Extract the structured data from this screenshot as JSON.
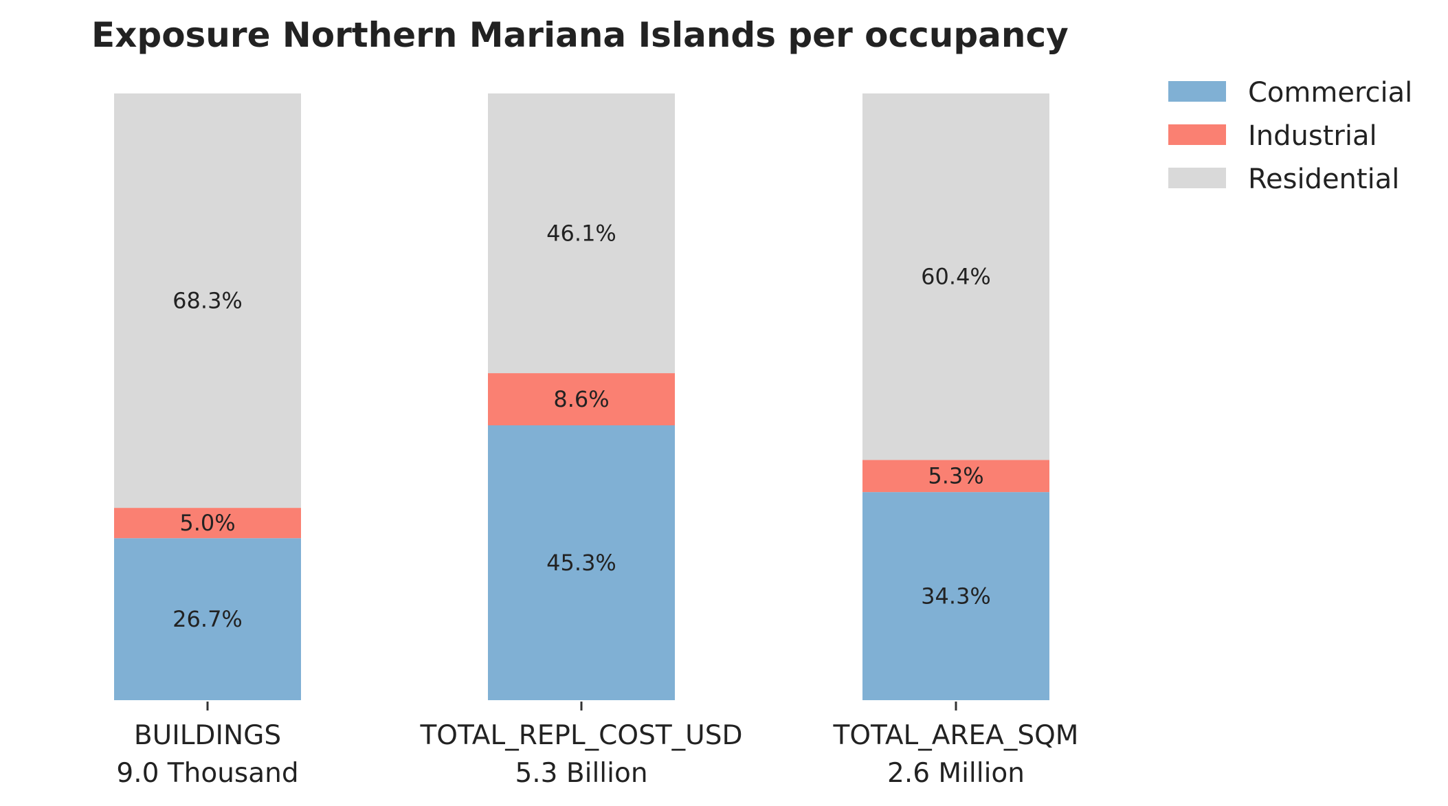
{
  "chart_data": {
    "type": "bar",
    "stacked": true,
    "title": "Exposure Northern Mariana Islands per occupancy",
    "xlabel": "",
    "ylabel": "",
    "ylim": [
      0,
      100
    ],
    "grid": false,
    "legend_position": "top-right (outside plot)",
    "categories": [
      "BUILDINGS",
      "TOTAL_REPL_COST_USD",
      "TOTAL_AREA_SQM"
    ],
    "category_totals": [
      "9.0 Thousand",
      "5.3 Billion",
      "2.6 Million"
    ],
    "series": [
      {
        "name": "Commercial",
        "color": "#80b0d4",
        "values": [
          26.7,
          45.3,
          34.3
        ],
        "labels": [
          "26.7%",
          "45.3%",
          "34.3%"
        ]
      },
      {
        "name": "Industrial",
        "color": "#fa8072",
        "values": [
          5.0,
          8.6,
          5.3
        ],
        "labels": [
          "5.0%",
          "8.6%",
          "5.3%"
        ]
      },
      {
        "name": "Residential",
        "color": "#d9d9d9",
        "values": [
          68.3,
          46.1,
          60.4
        ],
        "labels": [
          "68.3%",
          "46.1%",
          "60.4%"
        ]
      }
    ]
  }
}
